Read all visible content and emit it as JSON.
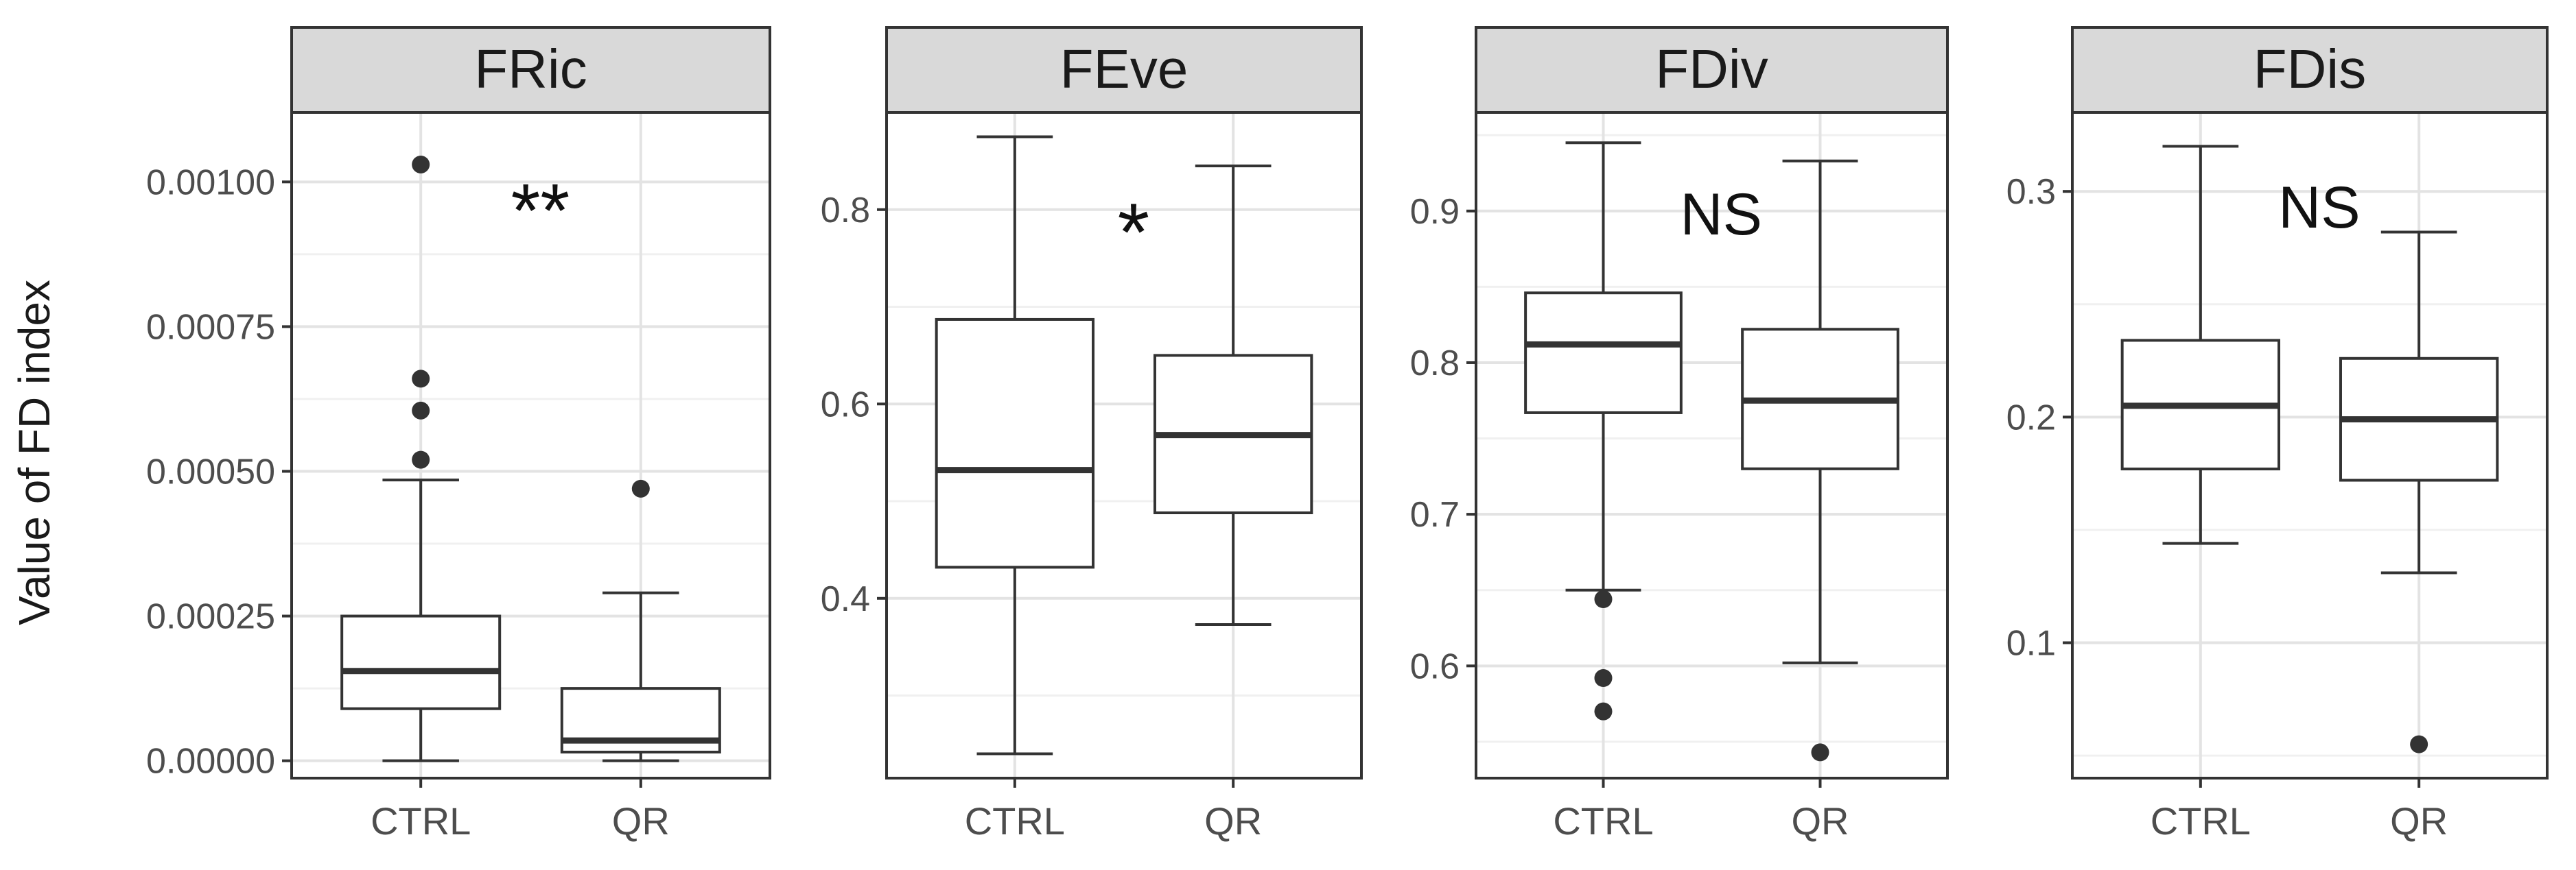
{
  "chart_data": {
    "type": "boxplot",
    "ylabel": "Value of FD index",
    "categories": [
      "CTRL",
      "QR"
    ],
    "panels": [
      {
        "title": "FRic",
        "significance": "**",
        "ylim": [
          -3e-05,
          0.00112
        ],
        "ticks": [
          0.0,
          0.00025,
          0.0005,
          0.00075,
          0.001
        ],
        "tick_labels": [
          "0.00000",
          "0.00025",
          "0.00050",
          "0.00075",
          "0.00100"
        ],
        "groups": [
          {
            "name": "CTRL",
            "min": 0.0,
            "q1": 9e-05,
            "median": 0.000155,
            "q3": 0.00025,
            "max": 0.000485,
            "outliers": [
              0.00052,
              0.000605,
              0.00066,
              0.00103
            ]
          },
          {
            "name": "QR",
            "min": 0.0,
            "q1": 1.5e-05,
            "median": 3.5e-05,
            "q3": 0.000125,
            "max": 0.00029,
            "outliers": [
              0.00047
            ]
          }
        ]
      },
      {
        "title": "FEve",
        "significance": "*",
        "ylim": [
          0.215,
          0.9
        ],
        "ticks": [
          0.4,
          0.6,
          0.8
        ],
        "tick_labels": [
          "0.4",
          "0.6",
          "0.8"
        ],
        "groups": [
          {
            "name": "CTRL",
            "min": 0.24,
            "q1": 0.432,
            "median": 0.532,
            "q3": 0.687,
            "max": 0.875,
            "outliers": []
          },
          {
            "name": "QR",
            "min": 0.373,
            "q1": 0.488,
            "median": 0.568,
            "q3": 0.65,
            "max": 0.845,
            "outliers": []
          }
        ]
      },
      {
        "title": "FDiv",
        "significance": "NS",
        "ylim": [
          0.526,
          0.965
        ],
        "ticks": [
          0.6,
          0.7,
          0.8,
          0.9
        ],
        "tick_labels": [
          "0.6",
          "0.7",
          "0.8",
          "0.9"
        ],
        "groups": [
          {
            "name": "CTRL",
            "min": 0.65,
            "q1": 0.767,
            "median": 0.812,
            "q3": 0.846,
            "max": 0.945,
            "outliers": [
              0.644,
              0.592,
              0.57
            ]
          },
          {
            "name": "QR",
            "min": 0.602,
            "q1": 0.73,
            "median": 0.775,
            "q3": 0.822,
            "max": 0.933,
            "outliers": [
              0.543
            ]
          }
        ]
      },
      {
        "title": "FDis",
        "significance": "NS",
        "ylim": [
          0.04,
          0.335
        ],
        "ticks": [
          0.1,
          0.2,
          0.3
        ],
        "tick_labels": [
          "0.1",
          "0.2",
          "0.3"
        ],
        "groups": [
          {
            "name": "CTRL",
            "min": 0.144,
            "q1": 0.177,
            "median": 0.205,
            "q3": 0.234,
            "max": 0.32,
            "outliers": []
          },
          {
            "name": "QR",
            "min": 0.131,
            "q1": 0.172,
            "median": 0.199,
            "q3": 0.226,
            "max": 0.282,
            "outliers": [
              0.055
            ]
          }
        ]
      }
    ]
  }
}
